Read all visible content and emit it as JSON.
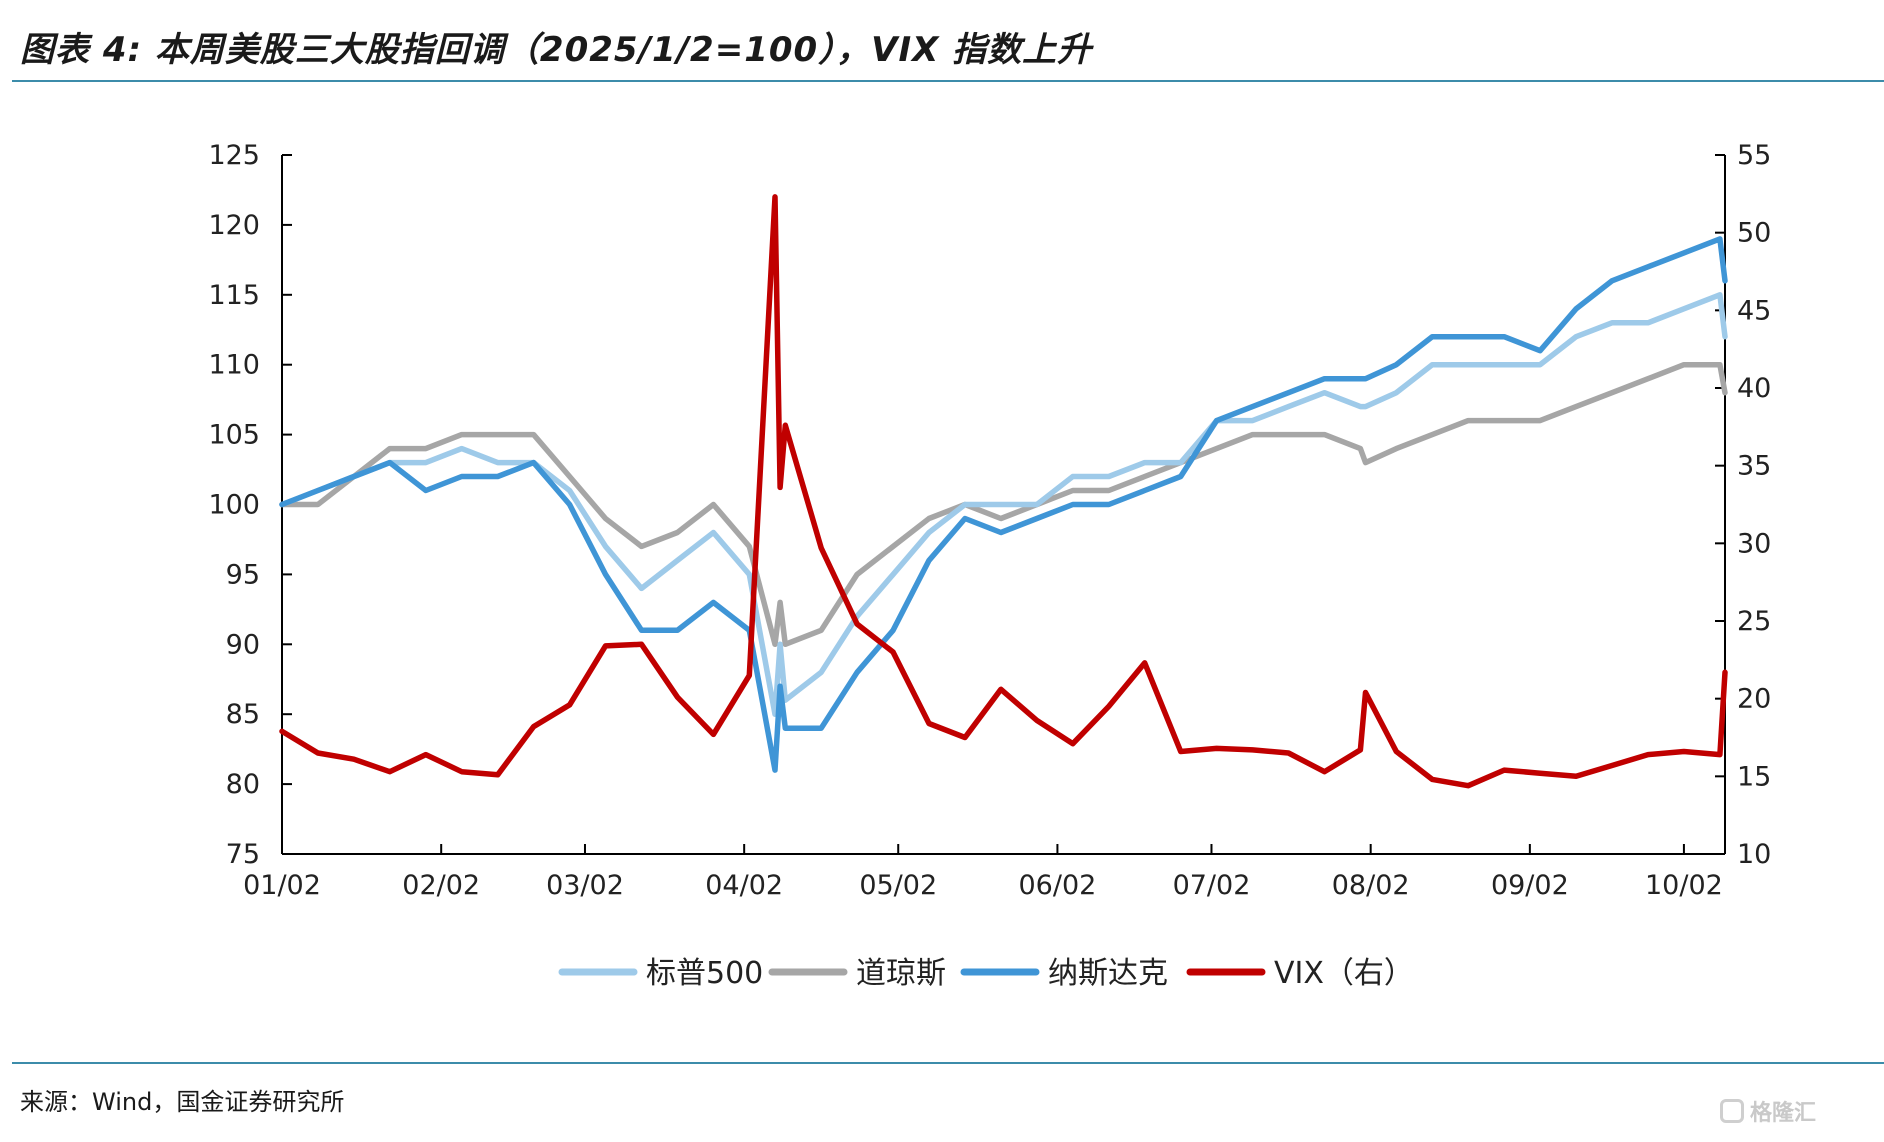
{
  "title": "图表 4: 本周美股三大股指回调（2025/1/2=100），VIX 指数上升",
  "source": "来源：Wind，国金证券研究所",
  "watermark": "格隆汇",
  "chart_data": {
    "type": "line",
    "x": [
      "01/02",
      "01/09",
      "01/16",
      "01/23",
      "01/30",
      "02/06",
      "02/13",
      "02/20",
      "02/27",
      "03/06",
      "03/13",
      "03/20",
      "03/27",
      "04/03",
      "04/08",
      "04/09",
      "04/10",
      "04/17",
      "04/24",
      "05/01",
      "05/08",
      "05/15",
      "05/22",
      "05/29",
      "06/05",
      "06/12",
      "06/19",
      "06/26",
      "07/03",
      "07/10",
      "07/17",
      "07/24",
      "07/31",
      "08/01",
      "08/07",
      "08/14",
      "08/21",
      "08/28",
      "09/04",
      "09/11",
      "09/18",
      "09/25",
      "10/02",
      "10/09",
      "10/10"
    ],
    "xticks": [
      "01/02",
      "02/02",
      "03/02",
      "04/02",
      "05/02",
      "06/02",
      "07/02",
      "08/02",
      "09/02",
      "10/02"
    ],
    "left_axis": {
      "ylim": [
        75,
        125
      ],
      "ticks": [
        75,
        80,
        85,
        90,
        95,
        100,
        105,
        110,
        115,
        120,
        125
      ]
    },
    "right_axis": {
      "ylim": [
        10,
        55
      ],
      "ticks": [
        10,
        15,
        20,
        25,
        30,
        35,
        40,
        45,
        50,
        55
      ]
    },
    "series": [
      {
        "name": "标普500",
        "axis": "left",
        "color": "#9ecae9",
        "values": [
          100,
          101,
          102,
          103,
          103,
          104,
          103,
          103,
          101,
          97,
          94,
          96,
          98,
          95,
          85,
          90,
          86,
          88,
          92,
          95,
          98,
          100,
          100,
          100,
          102,
          102,
          103,
          103,
          106,
          106,
          107,
          108,
          107,
          107,
          108,
          110,
          110,
          110,
          110,
          112,
          113,
          113,
          114,
          115,
          112
        ]
      },
      {
        "name": "道琼斯",
        "axis": "left",
        "color": "#a6a6a6",
        "values": [
          100,
          100,
          102,
          104,
          104,
          105,
          105,
          105,
          102,
          99,
          97,
          98,
          100,
          97,
          90,
          93,
          90,
          91,
          95,
          97,
          99,
          100,
          99,
          100,
          101,
          101,
          102,
          103,
          104,
          105,
          105,
          105,
          104,
          103,
          104,
          105,
          106,
          106,
          106,
          107,
          108,
          109,
          110,
          110,
          108
        ]
      },
      {
        "name": "纳斯达克",
        "axis": "left",
        "color": "#3f95d6",
        "values": [
          100,
          101,
          102,
          103,
          101,
          102,
          102,
          103,
          100,
          95,
          91,
          91,
          93,
          91,
          81,
          87,
          84,
          84,
          88,
          91,
          96,
          99,
          98,
          99,
          100,
          100,
          101,
          102,
          106,
          107,
          108,
          109,
          109,
          109,
          110,
          112,
          112,
          112,
          111,
          114,
          116,
          117,
          118,
          119,
          116
        ]
      },
      {
        "name": "VIX（右）",
        "axis": "right",
        "color": "#c00000",
        "values": [
          17.9,
          16.5,
          16.1,
          15.3,
          16.4,
          15.3,
          15.1,
          18.2,
          19.6,
          23.4,
          23.5,
          20.1,
          17.7,
          21.5,
          52.3,
          33.6,
          37.6,
          29.7,
          24.8,
          23.0,
          18.4,
          17.5,
          20.6,
          18.6,
          17.1,
          19.5,
          22.3,
          16.6,
          16.8,
          16.7,
          16.5,
          15.3,
          16.7,
          20.4,
          16.6,
          14.8,
          14.4,
          15.4,
          15.2,
          15.0,
          15.7,
          16.4,
          16.6,
          16.4,
          21.7
        ]
      }
    ],
    "legend_position": "bottom-center",
    "grid": false
  }
}
